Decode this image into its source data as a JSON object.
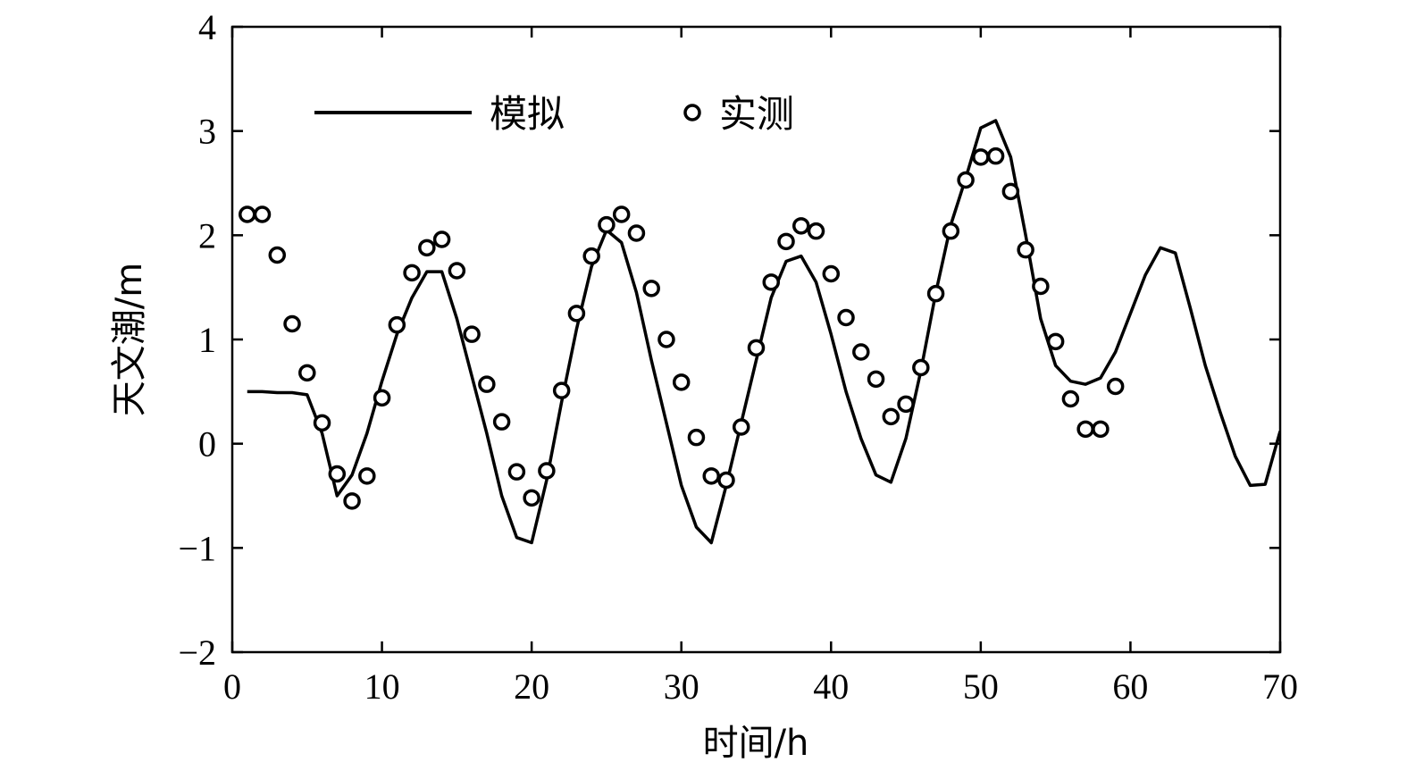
{
  "chart_data": {
    "type": "line",
    "xlabel": "时间/h",
    "ylabel": "天文潮/m",
    "xlim": [
      0,
      70
    ],
    "ylim": [
      -2,
      4
    ],
    "xticks": [
      0,
      10,
      20,
      30,
      40,
      50,
      60,
      70
    ],
    "yticks": [
      -2,
      -1,
      0,
      1,
      2,
      3,
      4
    ],
    "xtick_labels": [
      "0",
      "10",
      "20",
      "30",
      "40",
      "50",
      "60",
      "70"
    ],
    "ytick_labels": [
      "−2",
      "−1",
      "0",
      "1",
      "2",
      "3",
      "4"
    ],
    "legend_position": "top-left",
    "grid": false,
    "series": [
      {
        "name": "模拟",
        "style": "line",
        "color": "#000000",
        "x": [
          1,
          2,
          3,
          4,
          5,
          6,
          7,
          8,
          9,
          10,
          11,
          12,
          13,
          14,
          15,
          16,
          17,
          18,
          19,
          20,
          21,
          22,
          23,
          24,
          25,
          26,
          27,
          28,
          29,
          30,
          31,
          32,
          33,
          34,
          35,
          36,
          37,
          38,
          39,
          40,
          41,
          42,
          43,
          44,
          45,
          46,
          47,
          48,
          49,
          50,
          51,
          52,
          53,
          54,
          55,
          56,
          57,
          58,
          59,
          60,
          61,
          62,
          63,
          64,
          65,
          66,
          67,
          68,
          69,
          70
        ],
        "y": [
          0.5,
          0.5,
          0.49,
          0.49,
          0.47,
          0.1,
          -0.5,
          -0.3,
          0.1,
          0.6,
          1.05,
          1.4,
          1.65,
          1.65,
          1.2,
          0.65,
          0.1,
          -0.5,
          -0.9,
          -0.95,
          -0.35,
          0.4,
          1.1,
          1.7,
          2.05,
          1.93,
          1.45,
          0.8,
          0.2,
          -0.4,
          -0.8,
          -0.95,
          -0.4,
          0.2,
          0.8,
          1.4,
          1.75,
          1.8,
          1.55,
          1.05,
          0.5,
          0.05,
          -0.3,
          -0.37,
          0.05,
          0.7,
          1.45,
          2.1,
          2.55,
          3.03,
          3.1,
          2.75,
          2.0,
          1.2,
          0.75,
          0.6,
          0.57,
          0.63,
          0.88,
          1.25,
          1.62,
          1.88,
          1.83,
          1.3,
          0.75,
          0.3,
          -0.12,
          -0.4,
          -0.39,
          0.12
        ]
      },
      {
        "name": "实测",
        "style": "marker",
        "marker": "open-circle",
        "color": "#000000",
        "x": [
          1,
          2,
          3,
          4,
          5,
          6,
          7,
          8,
          9,
          10,
          11,
          12,
          13,
          14,
          15,
          16,
          17,
          18,
          19,
          20,
          21,
          22,
          23,
          24,
          25,
          26,
          27,
          28,
          29,
          30,
          31,
          32,
          33,
          34,
          35,
          36,
          37,
          38,
          39,
          40,
          41,
          42,
          43,
          44,
          45,
          46,
          47,
          48,
          49,
          50,
          51,
          52,
          53,
          54,
          55,
          56,
          57,
          58,
          59
        ],
        "y": [
          2.2,
          2.2,
          1.81,
          1.15,
          0.68,
          0.2,
          -0.29,
          -0.55,
          -0.31,
          0.44,
          1.14,
          1.64,
          1.88,
          1.96,
          1.66,
          1.05,
          0.57,
          0.21,
          -0.27,
          -0.52,
          -0.26,
          0.51,
          1.25,
          1.8,
          2.1,
          2.2,
          2.02,
          1.49,
          1.0,
          0.59,
          0.06,
          -0.31,
          -0.35,
          0.16,
          0.92,
          1.55,
          1.94,
          2.09,
          2.04,
          1.63,
          1.21,
          0.88,
          0.62,
          0.26,
          0.38,
          0.73,
          1.44,
          2.04,
          2.53,
          2.75,
          2.76,
          2.42,
          1.86,
          1.51,
          0.98,
          0.43,
          0.14,
          0.14,
          0.55
        ]
      }
    ]
  }
}
